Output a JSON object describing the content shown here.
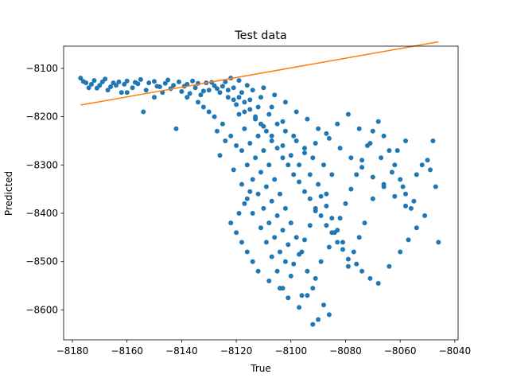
{
  "chart_data": {
    "type": "scatter",
    "title": "Test data",
    "xlabel": "True",
    "ylabel": "Predicted",
    "xlim": [
      -8183.2,
      -8038.8
    ],
    "ylim": [
      -8662,
      -8054
    ],
    "xticks": [
      -8180,
      -8160,
      -8140,
      -8120,
      -8100,
      -8080,
      -8060,
      -8040
    ],
    "yticks": [
      -8100,
      -8200,
      -8300,
      -8400,
      -8500,
      -8600
    ],
    "xtick_labels": [
      "−8180",
      "−8160",
      "−8140",
      "−8120",
      "−8100",
      "−8080",
      "−8060",
      "−8040"
    ],
    "ytick_labels": [
      "−8100",
      "−8200",
      "−8300",
      "−8400",
      "−8500",
      "−8600"
    ],
    "colors": {
      "points": "#1f77b4",
      "line": "#ff7f0e"
    },
    "line": {
      "x": [
        -8177,
        -8046
      ],
      "y": [
        -8176,
        -8045
      ]
    },
    "scatter_points": [
      [
        -8177,
        -8120
      ],
      [
        -8175,
        -8130
      ],
      [
        -8174,
        -8140
      ],
      [
        -8172,
        -8125
      ],
      [
        -8170,
        -8135
      ],
      [
        -8168,
        -8122
      ],
      [
        -8167,
        -8145
      ],
      [
        -8165,
        -8130
      ],
      [
        -8163,
        -8128
      ],
      [
        -8162,
        -8150
      ],
      [
        -8160,
        -8126
      ],
      [
        -8158,
        -8140
      ],
      [
        -8156,
        -8132
      ],
      [
        -8155,
        -8123
      ],
      [
        -8153,
        -8145
      ],
      [
        -8152,
        -8130
      ],
      [
        -8150,
        -8127
      ],
      [
        -8148,
        -8138
      ],
      [
        -8147,
        -8150
      ],
      [
        -8145,
        -8124
      ],
      [
        -8143,
        -8135
      ],
      [
        -8141,
        -8128
      ],
      [
        -8140,
        -8148
      ],
      [
        -8138,
        -8133
      ],
      [
        -8136,
        -8126
      ],
      [
        -8135,
        -8140
      ],
      [
        -8133,
        -8155
      ],
      [
        -8131,
        -8130
      ],
      [
        -8130,
        -8145
      ],
      [
        -8128,
        -8136
      ],
      [
        -8126,
        -8150
      ],
      [
        -8124,
        -8128
      ],
      [
        -8123,
        -8160
      ],
      [
        -8121,
        -8140
      ],
      [
        -8120,
        -8175
      ],
      [
        -8118,
        -8150
      ],
      [
        -8117,
        -8190
      ],
      [
        -8115,
        -8165
      ],
      [
        -8113,
        -8205
      ],
      [
        -8112,
        -8180
      ],
      [
        -8110,
        -8220
      ],
      [
        -8108,
        -8195
      ],
      [
        -8107,
        -8240
      ],
      [
        -8105,
        -8215
      ],
      [
        -8103,
        -8260
      ],
      [
        -8102,
        -8230
      ],
      [
        -8100,
        -8280
      ],
      [
        -8098,
        -8250
      ],
      [
        -8097,
        -8300
      ],
      [
        -8095,
        -8265
      ],
      [
        -8093,
        -8320
      ],
      [
        -8092,
        -8285
      ],
      [
        -8090,
        -8340
      ],
      [
        -8088,
        -8300
      ],
      [
        -8087,
        -8360
      ],
      [
        -8085,
        -8320
      ],
      [
        -8112,
        -8240
      ],
      [
        -8110,
        -8270
      ],
      [
        -8108,
        -8300
      ],
      [
        -8106,
        -8330
      ],
      [
        -8104,
        -8360
      ],
      [
        -8102,
        -8390
      ],
      [
        -8100,
        -8420
      ],
      [
        -8098,
        -8450
      ],
      [
        -8096,
        -8480
      ],
      [
        -8094,
        -8520
      ],
      [
        -8092,
        -8555
      ],
      [
        -8118,
        -8270
      ],
      [
        -8116,
        -8300
      ],
      [
        -8114,
        -8330
      ],
      [
        -8112,
        -8360
      ],
      [
        -8110,
        -8390
      ],
      [
        -8108,
        -8420
      ],
      [
        -8106,
        -8450
      ],
      [
        -8104,
        -8480
      ],
      [
        -8102,
        -8500
      ],
      [
        -8100,
        -8530
      ],
      [
        -8122,
        -8240
      ],
      [
        -8120,
        -8260
      ],
      [
        -8125,
        -8215
      ],
      [
        -8128,
        -8200
      ],
      [
        -8130,
        -8190
      ],
      [
        -8132,
        -8180
      ],
      [
        -8134,
        -8170
      ],
      [
        -8127,
        -8230
      ],
      [
        -8124,
        -8250
      ],
      [
        -8126,
        -8280
      ],
      [
        -8121,
        -8310
      ],
      [
        -8118,
        -8340
      ],
      [
        -8116,
        -8370
      ],
      [
        -8114,
        -8400
      ],
      [
        -8111,
        -8430
      ],
      [
        -8109,
        -8460
      ],
      [
        -8107,
        -8490
      ],
      [
        -8105,
        -8520
      ],
      [
        -8103,
        -8555
      ],
      [
        -8101,
        -8575
      ],
      [
        -8097,
        -8595
      ],
      [
        -8094,
        -8570
      ],
      [
        -8091,
        -8535
      ],
      [
        -8089,
        -8500
      ],
      [
        -8086,
        -8470
      ],
      [
        -8084,
        -8440
      ],
      [
        -8082,
        -8410
      ],
      [
        -8080,
        -8380
      ],
      [
        -8078,
        -8350
      ],
      [
        -8076,
        -8320
      ],
      [
        -8074,
        -8290
      ],
      [
        -8072,
        -8260
      ],
      [
        -8070,
        -8230
      ],
      [
        -8068,
        -8210
      ],
      [
        -8066,
        -8240
      ],
      [
        -8064,
        -8270
      ],
      [
        -8062,
        -8300
      ],
      [
        -8060,
        -8330
      ],
      [
        -8058,
        -8360
      ],
      [
        -8056,
        -8390
      ],
      [
        -8054,
        -8320
      ],
      [
        -8052,
        -8300
      ],
      [
        -8050,
        -8290
      ],
      [
        -8049,
        -8310
      ],
      [
        -8048,
        -8250
      ],
      [
        -8047,
        -8345
      ],
      [
        -8046,
        -8460
      ],
      [
        -8058,
        -8250
      ],
      [
        -8061,
        -8270
      ],
      [
        -8066,
        -8340
      ],
      [
        -8070,
        -8370
      ],
      [
        -8073,
        -8420
      ],
      [
        -8075,
        -8450
      ],
      [
        -8077,
        -8480
      ],
      [
        -8079,
        -8510
      ],
      [
        -8081,
        -8460
      ],
      [
        -8083,
        -8435
      ],
      [
        -8085,
        -8410
      ],
      [
        -8087,
        -8385
      ],
      [
        -8089,
        -8365
      ],
      [
        -8091,
        -8395
      ],
      [
        -8093,
        -8425
      ],
      [
        -8095,
        -8455
      ],
      [
        -8097,
        -8485
      ],
      [
        -8099,
        -8505
      ],
      [
        -8101,
        -8465
      ],
      [
        -8103,
        -8435
      ],
      [
        -8105,
        -8405
      ],
      [
        -8107,
        -8375
      ],
      [
        -8109,
        -8345
      ],
      [
        -8111,
        -8315
      ],
      [
        -8113,
        -8285
      ],
      [
        -8115,
        -8255
      ],
      [
        -8117,
        -8225
      ],
      [
        -8119,
        -8195
      ],
      [
        -8121,
        -8165
      ],
      [
        -8123,
        -8145
      ],
      [
        -8119,
        -8160
      ],
      [
        -8117,
        -8170
      ],
      [
        -8115,
        -8185
      ],
      [
        -8113,
        -8200
      ],
      [
        -8111,
        -8215
      ],
      [
        -8109,
        -8230
      ],
      [
        -8107,
        -8250
      ],
      [
        -8105,
        -8265
      ],
      [
        -8103,
        -8285
      ],
      [
        -8101,
        -8300
      ],
      [
        -8099,
        -8320
      ],
      [
        -8097,
        -8335
      ],
      [
        -8095,
        -8355
      ],
      [
        -8093,
        -8370
      ],
      [
        -8091,
        -8390
      ],
      [
        -8089,
        -8405
      ],
      [
        -8087,
        -8425
      ],
      [
        -8085,
        -8440
      ],
      [
        -8083,
        -8460
      ],
      [
        -8081,
        -8475
      ],
      [
        -8079,
        -8495
      ],
      [
        -8076,
        -8505
      ],
      [
        -8074,
        -8520
      ],
      [
        -8071,
        -8535
      ],
      [
        -8068,
        -8545
      ],
      [
        -8064,
        -8510
      ],
      [
        -8060,
        -8480
      ],
      [
        -8057,
        -8455
      ],
      [
        -8054,
        -8430
      ],
      [
        -8051,
        -8405
      ],
      [
        -8055,
        -8375
      ],
      [
        -8059,
        -8345
      ],
      [
        -8063,
        -8315
      ],
      [
        -8067,
        -8285
      ],
      [
        -8071,
        -8255
      ],
      [
        -8075,
        -8225
      ],
      [
        -8079,
        -8195
      ],
      [
        -8083,
        -8215
      ],
      [
        -8087,
        -8235
      ],
      [
        -8091,
        -8255
      ],
      [
        -8095,
        -8275
      ],
      [
        -8099,
        -8240
      ],
      [
        -8103,
        -8210
      ],
      [
        -8107,
        -8180
      ],
      [
        -8111,
        -8160
      ],
      [
        -8114,
        -8145
      ],
      [
        -8116,
        -8135
      ],
      [
        -8119,
        -8125
      ],
      [
        -8122,
        -8120
      ],
      [
        -8110,
        -8140
      ],
      [
        -8106,
        -8155
      ],
      [
        -8102,
        -8170
      ],
      [
        -8098,
        -8190
      ],
      [
        -8094,
        -8205
      ],
      [
        -8090,
        -8225
      ],
      [
        -8086,
        -8245
      ],
      [
        -8082,
        -8265
      ],
      [
        -8078,
        -8285
      ],
      [
        -8074,
        -8305
      ],
      [
        -8070,
        -8325
      ],
      [
        -8066,
        -8345
      ],
      [
        -8062,
        -8365
      ],
      [
        -8058,
        -8385
      ],
      [
        -8142,
        -8225
      ],
      [
        -8154,
        -8190
      ],
      [
        -8138,
        -8160
      ],
      [
        -8150,
        -8160
      ],
      [
        -8160,
        -8150
      ],
      [
        -8164,
        -8135
      ],
      [
        -8169,
        -8128
      ],
      [
        -8173,
        -8133
      ],
      [
        -8176,
        -8127
      ],
      [
        -8171,
        -8141
      ],
      [
        -8166,
        -8138
      ],
      [
        -8161,
        -8133
      ],
      [
        -8157,
        -8129
      ],
      [
        -8146,
        -8131
      ],
      [
        -8139,
        -8137
      ],
      [
        -8134,
        -8131
      ],
      [
        -8129,
        -8129
      ],
      [
        -8127,
        -8142
      ],
      [
        -8125,
        -8137
      ],
      [
        -8132,
        -8147
      ],
      [
        -8137,
        -8152
      ],
      [
        -8144,
        -8142
      ],
      [
        -8149,
        -8137
      ],
      [
        -8092,
        -8630
      ],
      [
        -8090,
        -8620
      ],
      [
        -8086,
        -8610
      ],
      [
        -8088,
        -8590
      ],
      [
        -8096,
        -8570
      ],
      [
        -8104,
        -8555
      ],
      [
        -8108,
        -8540
      ],
      [
        -8112,
        -8520
      ],
      [
        -8114,
        -8500
      ],
      [
        -8116,
        -8480
      ],
      [
        -8118,
        -8460
      ],
      [
        -8120,
        -8440
      ],
      [
        -8122,
        -8420
      ],
      [
        -8119,
        -8400
      ],
      [
        -8117,
        -8380
      ],
      [
        -8115,
        -8355
      ]
    ]
  }
}
